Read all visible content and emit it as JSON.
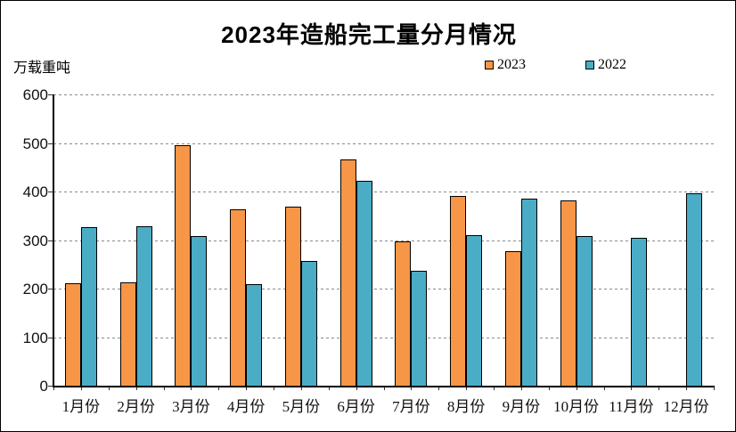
{
  "window": {
    "background": "#ffffff",
    "border_color": "#000000"
  },
  "header": {
    "title": "2023年造船完工量分月情况",
    "unit_label": "万载重吨"
  },
  "legend": {
    "items": [
      {
        "label": "2023",
        "color": "#F79646"
      },
      {
        "label": "2022",
        "color": "#4BACC6"
      }
    ]
  },
  "chart_data": {
    "type": "bar",
    "title": "2023年造船完工量分月情况",
    "xlabel": "",
    "ylabel": "万载重吨",
    "categories": [
      "1月份",
      "2月份",
      "3月份",
      "4月份",
      "5月份",
      "6月份",
      "7月份",
      "8月份",
      "9月份",
      "10月份",
      "11月份",
      "12月份"
    ],
    "series": [
      {
        "name": "2023",
        "color": "#F79646",
        "values": [
          211,
          212,
          495,
          364,
          368,
          466,
          297,
          390,
          277,
          381,
          null,
          null
        ]
      },
      {
        "name": "2022",
        "color": "#4BACC6",
        "values": [
          326,
          328,
          309,
          210,
          257,
          422,
          236,
          310,
          386,
          309,
          304,
          397
        ]
      }
    ],
    "ylim": [
      0,
      600
    ],
    "ytick_step": 100,
    "grid": true,
    "gridline_style": "dashed",
    "gridline_color": "#8a8a8a",
    "bar_border_color": "#000000",
    "legend_position": "top"
  }
}
